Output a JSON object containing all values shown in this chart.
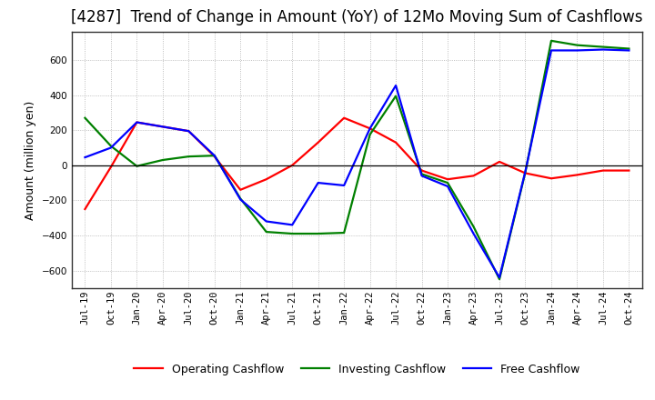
{
  "title": "[4287]  Trend of Change in Amount (YoY) of 12Mo Moving Sum of Cashflows",
  "ylabel": "Amount (million yen)",
  "x_labels": [
    "Jul-19",
    "Oct-19",
    "Jan-20",
    "Apr-20",
    "Jul-20",
    "Oct-20",
    "Jan-21",
    "Apr-21",
    "Jul-21",
    "Oct-21",
    "Jan-22",
    "Apr-22",
    "Jul-22",
    "Oct-22",
    "Jan-23",
    "Apr-23",
    "Jul-23",
    "Oct-23",
    "Jan-24",
    "Apr-24",
    "Jul-24",
    "Oct-24"
  ],
  "operating": [
    -250,
    -10,
    245,
    220,
    195,
    50,
    -140,
    -80,
    0,
    130,
    270,
    210,
    130,
    -30,
    -80,
    -60,
    20,
    -45,
    -75,
    -55,
    -30,
    -30
  ],
  "investing": [
    270,
    110,
    -5,
    30,
    50,
    55,
    -190,
    -380,
    -390,
    -390,
    -385,
    175,
    395,
    -50,
    -100,
    -350,
    -650,
    -40,
    710,
    685,
    675,
    665
  ],
  "free": [
    45,
    100,
    245,
    220,
    195,
    55,
    -195,
    -320,
    -340,
    -100,
    -115,
    210,
    455,
    -60,
    -120,
    -390,
    -640,
    -35,
    655,
    655,
    660,
    655
  ],
  "ylim": [
    -700,
    760
  ],
  "yticks": [
    -600,
    -400,
    -200,
    0,
    200,
    400,
    600
  ],
  "colors": {
    "operating": "#ff0000",
    "investing": "#008000",
    "free": "#0000ff"
  },
  "legend": [
    "Operating Cashflow",
    "Investing Cashflow",
    "Free Cashflow"
  ],
  "background": "#ffffff",
  "grid_color": "#999999",
  "title_fontsize": 12,
  "label_fontsize": 9
}
